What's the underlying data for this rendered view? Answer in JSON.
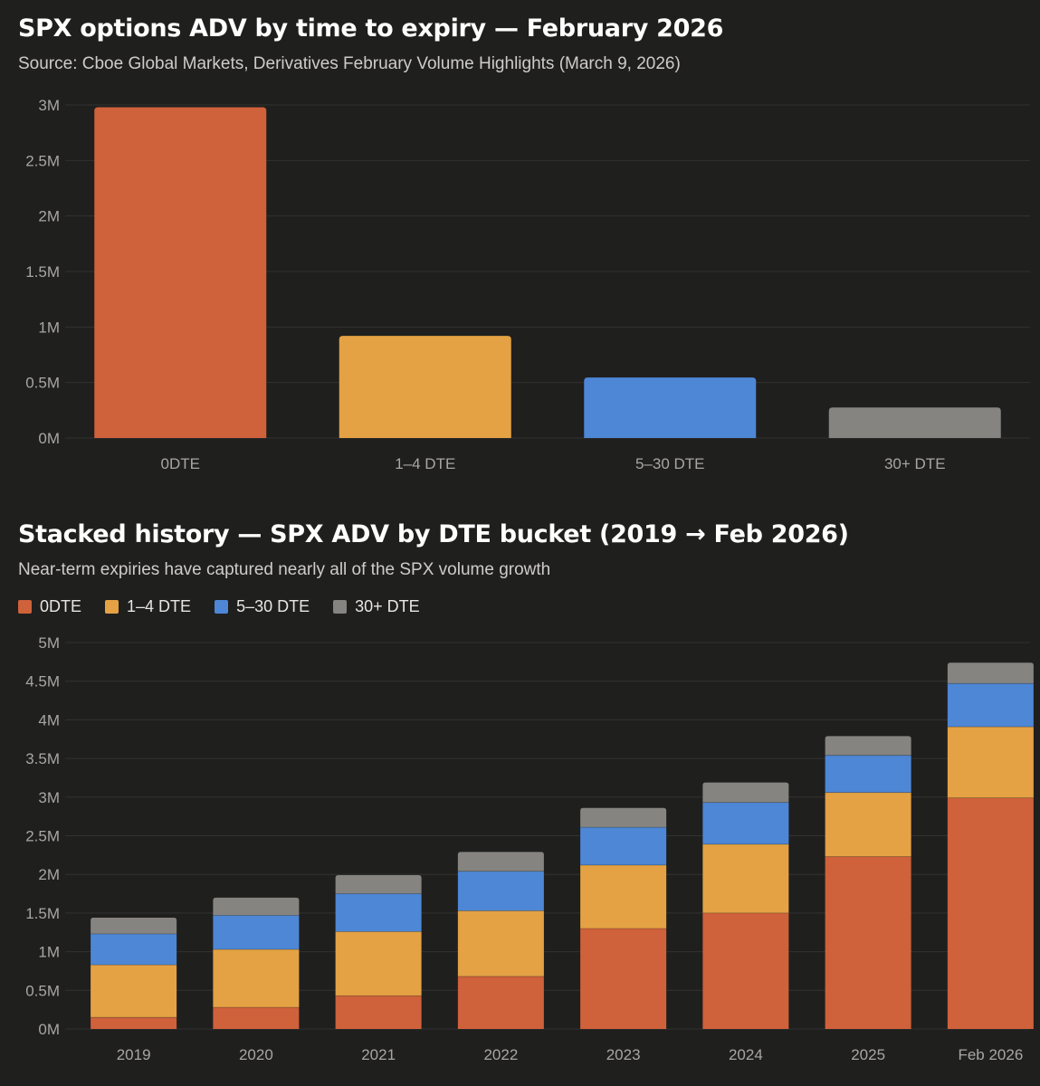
{
  "colors": {
    "0DTE": "#cf613b",
    "1-4 DTE": "#e4a244",
    "5-30 DTE": "#4d87d6",
    "30+ DTE": "#858480",
    "grid": "#333231",
    "background": "#1f1f1e"
  },
  "chart_data": [
    {
      "type": "bar",
      "title": "SPX options ADV by time to expiry — February 2026",
      "subtitle": "Source: Cboe Global Markets, Derivatives February Volume Highlights (March 9, 2026)",
      "categories": [
        "0DTE",
        "1–4 DTE",
        "5–30 DTE",
        "30+ DTE"
      ],
      "values": [
        2980000,
        920000,
        545000,
        275000
      ],
      "color_keys": [
        "0DTE",
        "1-4 DTE",
        "5-30 DTE",
        "30+ DTE"
      ],
      "ylim": [
        0,
        3000000
      ],
      "yticks": [
        0,
        500000,
        1000000,
        1500000,
        2000000,
        2500000,
        3000000
      ],
      "ytick_labels": [
        "0M",
        "0.5M",
        "1M",
        "1.5M",
        "2M",
        "2.5M",
        "3M"
      ],
      "xlabel": "",
      "ylabel": "",
      "grid": true
    },
    {
      "type": "bar",
      "stacked": true,
      "title": "Stacked history — SPX ADV by DTE bucket (2019 → Feb 2026)",
      "subtitle": "Near-term expiries have captured nearly all of the SPX volume growth",
      "categories": [
        "2019",
        "2020",
        "2021",
        "2022",
        "2023",
        "2024",
        "2025",
        "Feb 2026"
      ],
      "series": [
        {
          "name": "0DTE",
          "color_key": "0DTE",
          "values": [
            150000,
            280000,
            430000,
            680000,
            1300000,
            1500000,
            2230000,
            2990000
          ]
        },
        {
          "name": "1–4 DTE",
          "color_key": "1-4 DTE",
          "values": [
            680000,
            750000,
            830000,
            850000,
            820000,
            890000,
            830000,
            920000
          ]
        },
        {
          "name": "5–30 DTE",
          "color_key": "5-30 DTE",
          "values": [
            400000,
            440000,
            490000,
            510000,
            490000,
            540000,
            480000,
            560000
          ]
        },
        {
          "name": "30+ DTE",
          "color_key": "30+ DTE",
          "values": [
            210000,
            230000,
            240000,
            250000,
            250000,
            260000,
            250000,
            270000
          ]
        }
      ],
      "ylim": [
        0,
        5000000
      ],
      "yticks": [
        0,
        500000,
        1000000,
        1500000,
        2000000,
        2500000,
        3000000,
        3500000,
        4000000,
        4500000,
        5000000
      ],
      "ytick_labels": [
        "0M",
        "0.5M",
        "1M",
        "1.5M",
        "2M",
        "2.5M",
        "3M",
        "3.5M",
        "4M",
        "4.5M",
        "5M"
      ],
      "legend": [
        "0DTE",
        "1–4 DTE",
        "5–30 DTE",
        "30+ DTE"
      ],
      "legend_placement": "top-left",
      "xlabel": "",
      "ylabel": "",
      "grid": true
    }
  ]
}
